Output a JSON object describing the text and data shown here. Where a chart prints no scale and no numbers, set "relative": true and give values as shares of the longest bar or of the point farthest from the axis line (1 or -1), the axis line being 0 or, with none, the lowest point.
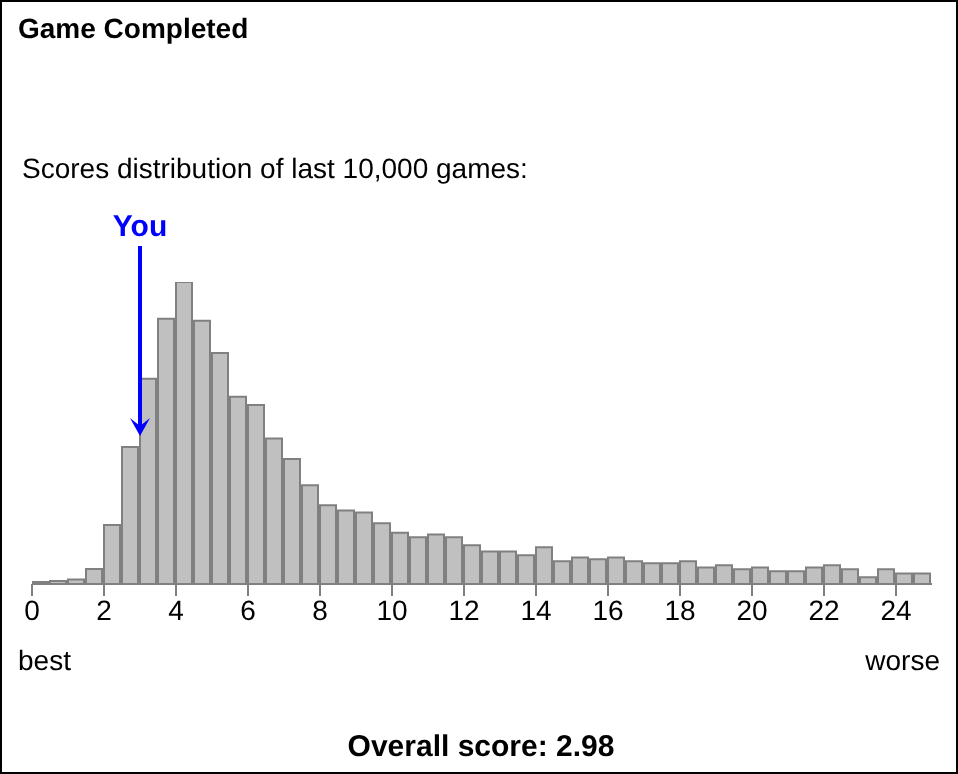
{
  "chart_data": {
    "type": "bar",
    "title": "Game Completed",
    "subtitle": "Scores distribution of last 10,000 games:",
    "relative": true,
    "x": [
      0.25,
      0.75,
      1.25,
      1.75,
      2.25,
      2.75,
      3.25,
      3.75,
      4.25,
      4.75,
      5.25,
      5.75,
      6.25,
      6.75,
      7.25,
      7.75,
      8.25,
      8.75,
      9.25,
      9.75,
      10.25,
      10.75,
      11.25,
      11.75,
      12.25,
      12.75,
      13.25,
      13.75,
      14.25,
      14.75,
      15.25,
      15.75,
      16.25,
      16.75,
      17.25,
      17.75,
      18.25,
      18.75,
      19.25,
      19.75,
      20.25,
      20.75,
      21.25,
      21.75,
      22.25,
      22.75,
      23.25,
      23.75,
      24.25,
      24.75
    ],
    "values": [
      0.007,
      0.01,
      0.015,
      0.05,
      0.195,
      0.454,
      0.68,
      0.878,
      1,
      0.872,
      0.765,
      0.62,
      0.593,
      0.482,
      0.414,
      0.327,
      0.261,
      0.243,
      0.237,
      0.201,
      0.17,
      0.155,
      0.164,
      0.155,
      0.128,
      0.108,
      0.108,
      0.095,
      0.122,
      0.075,
      0.088,
      0.082,
      0.088,
      0.075,
      0.069,
      0.069,
      0.075,
      0.055,
      0.062,
      0.049,
      0.055,
      0.042,
      0.042,
      0.055,
      0.062,
      0.049,
      0.022,
      0.049,
      0.035,
      0.035
    ],
    "color": "#c0c0c0",
    "xlim": [
      0,
      25
    ],
    "xticks": [
      0,
      2,
      4,
      6,
      8,
      10,
      12,
      14,
      16,
      18,
      20,
      22,
      24
    ],
    "annotations": [
      "You",
      "best",
      "worse",
      "Overall score: 2.98"
    ]
  }
}
